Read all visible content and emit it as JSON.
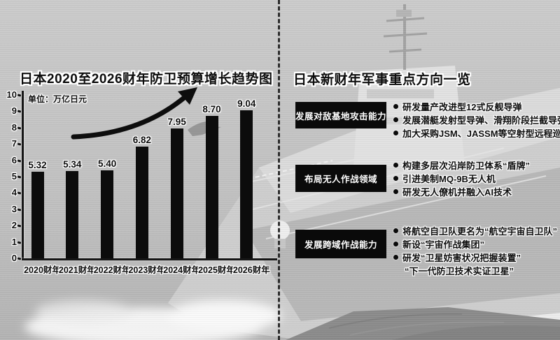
{
  "left_panel": {
    "title": "日本2020至2026财年防卫预算增长趋势图"
  },
  "chart_data": {
    "type": "bar",
    "title": "日本2020至2026财年防卫预算增长趋势图",
    "unit_label": "单位：万亿日元",
    "categories": [
      "2020财年",
      "2021财年",
      "2022财年",
      "2023财年",
      "2024财年",
      "2025财年",
      "2026财年"
    ],
    "values": [
      5.32,
      5.34,
      5.4,
      6.82,
      7.95,
      8.7,
      9.04
    ],
    "value_labels": [
      "5.32",
      "5.34",
      "5.40",
      "6.82",
      "7.95",
      "8.70",
      "9.04"
    ],
    "xlabel": "",
    "ylabel": "",
    "ylim": [
      0,
      10
    ],
    "ytick_step": 1,
    "grid": false,
    "legend": "none",
    "bar_color": "#0c0c0c",
    "annotations": [
      "thick black upward-curving trend arrow above bars"
    ]
  },
  "right_panel": {
    "title": "日本新财年军事重点方向一览",
    "sections": [
      {
        "heading": "发展对敌基地攻击能力",
        "bullets": [
          "研发量产改进型12式反舰导弹",
          "发展潜艇发射型导弹、滑翔阶段拦截导弹等",
          "加大采购JSM、JASSM等空射型远程巡航导弹"
        ]
      },
      {
        "heading": "布局无人作战领域",
        "bullets": [
          "构建多层次沿岸防卫体系“盾牌”",
          "引进美制MQ-9B无人机",
          "研发无人僚机并融入AI技术"
        ]
      },
      {
        "heading": "发展跨域作战能力",
        "bullets": [
          "将航空自卫队更名为“航空宇宙自卫队”",
          "新设“宇宙作战集团”",
          "研发“卫星妨害状况把握装置”"
        ],
        "continuation_lines": [
          "“下一代防卫技术实证卫星”"
        ]
      }
    ]
  },
  "icons": {
    "trend_arrow": "upward-curved-arrow",
    "bullet": "filled-circle"
  },
  "colors": {
    "ink": "#0d0d0d",
    "halo": "#ffffff",
    "heading_box_bg": "#0a0a0a",
    "heading_box_text": "#ffffff",
    "water_light": "#cbcbcb",
    "water_mid": "#b8b8b8",
    "waves_dark": "#8b8b8b",
    "ship_deck": "#cfcfcf",
    "ship_hull": "#eeeeee",
    "foam": "#f6f6f6"
  }
}
